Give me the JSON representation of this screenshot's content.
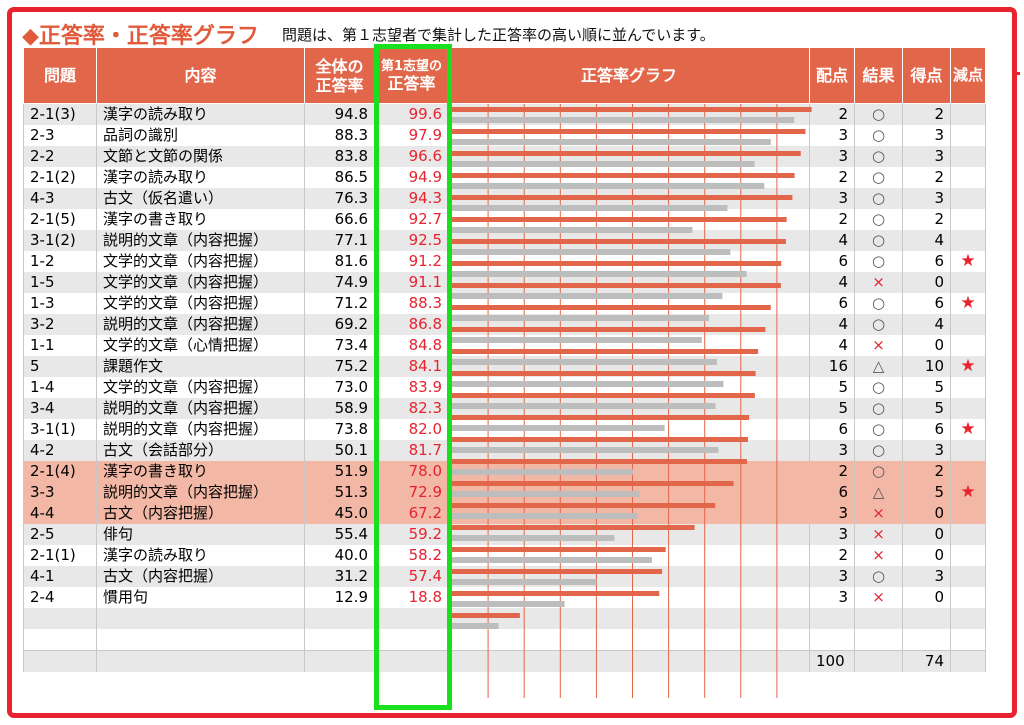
{
  "header": {
    "title": "◆正答率・正答率グラフ",
    "subtitle": "問題は、第１志望者で集計した正答率の高い順に並んでいます。"
  },
  "columns": {
    "q": "問題",
    "content": "内容",
    "all": [
      "全体の",
      "正答率"
    ],
    "first": [
      "第1志望の",
      "正答率"
    ],
    "graph": "正答率グラフ",
    "points": "配点",
    "result": "結果",
    "score": "得点",
    "deduct": "減点"
  },
  "chart_data": {
    "type": "bar",
    "title": "正答率グラフ",
    "categories": [
      "2-1(3)",
      "2-3",
      "2-2",
      "2-1(2)",
      "4-3",
      "2-1(5)",
      "3-1(2)",
      "1-2",
      "1-5",
      "1-3",
      "3-2",
      "1-1",
      "5",
      "1-4",
      "3-4",
      "3-1(1)",
      "4-2",
      "2-1(4)",
      "3-3",
      "4-4",
      "2-5",
      "2-1(1)",
      "4-1",
      "2-4"
    ],
    "series": [
      {
        "name": "第1志望の正答率",
        "color": "#e2664a",
        "values": [
          99.6,
          97.9,
          96.6,
          94.9,
          94.3,
          92.7,
          92.5,
          91.2,
          91.1,
          88.3,
          86.8,
          84.8,
          84.1,
          83.9,
          82.3,
          82.0,
          81.7,
          78.0,
          72.9,
          67.2,
          59.2,
          58.2,
          57.4,
          18.8
        ]
      },
      {
        "name": "全体の正答率",
        "color": "#bdbdbd",
        "values": [
          94.8,
          88.3,
          83.8,
          86.5,
          76.3,
          66.6,
          77.1,
          81.6,
          74.9,
          71.2,
          69.2,
          73.4,
          75.2,
          73.0,
          58.9,
          73.8,
          50.1,
          51.9,
          51.3,
          45.0,
          55.4,
          40.0,
          31.2,
          12.9
        ]
      }
    ],
    "xlim": [
      0,
      100
    ],
    "grid": true
  },
  "rows": [
    {
      "code": "2-1(3)",
      "content": "漢字の読み取り",
      "all": "94.8",
      "first": "99.6",
      "points": "2",
      "result": "○",
      "score": "2",
      "deduct": ""
    },
    {
      "code": "2-3",
      "content": "品詞の識別",
      "all": "88.3",
      "first": "97.9",
      "points": "3",
      "result": "○",
      "score": "3",
      "deduct": ""
    },
    {
      "code": "2-2",
      "content": "文節と文節の関係",
      "all": "83.8",
      "first": "96.6",
      "points": "3",
      "result": "○",
      "score": "3",
      "deduct": ""
    },
    {
      "code": "2-1(2)",
      "content": "漢字の読み取り",
      "all": "86.5",
      "first": "94.9",
      "points": "2",
      "result": "○",
      "score": "2",
      "deduct": ""
    },
    {
      "code": "4-3",
      "content": "古文（仮名遣い）",
      "all": "76.3",
      "first": "94.3",
      "points": "3",
      "result": "○",
      "score": "3",
      "deduct": ""
    },
    {
      "code": "2-1(5)",
      "content": "漢字の書き取り",
      "all": "66.6",
      "first": "92.7",
      "points": "2",
      "result": "○",
      "score": "2",
      "deduct": ""
    },
    {
      "code": "3-1(2)",
      "content": "説明的文章（内容把握）",
      "all": "77.1",
      "first": "92.5",
      "points": "4",
      "result": "○",
      "score": "4",
      "deduct": ""
    },
    {
      "code": "1-2",
      "content": "文学的文章（内容把握）",
      "all": "81.6",
      "first": "91.2",
      "points": "6",
      "result": "○",
      "score": "6",
      "deduct": "★"
    },
    {
      "code": "1-5",
      "content": "文学的文章（内容把握）",
      "all": "74.9",
      "first": "91.1",
      "points": "4",
      "result": "×",
      "score": "0",
      "deduct": ""
    },
    {
      "code": "1-3",
      "content": "文学的文章（内容把握）",
      "all": "71.2",
      "first": "88.3",
      "points": "6",
      "result": "○",
      "score": "6",
      "deduct": "★"
    },
    {
      "code": "3-2",
      "content": "説明的文章（内容把握）",
      "all": "69.2",
      "first": "86.8",
      "points": "4",
      "result": "○",
      "score": "4",
      "deduct": ""
    },
    {
      "code": "1-1",
      "content": "文学的文章（心情把握）",
      "all": "73.4",
      "first": "84.8",
      "points": "4",
      "result": "×",
      "score": "0",
      "deduct": ""
    },
    {
      "code": "5",
      "content": "課題作文",
      "all": "75.2",
      "first": "84.1",
      "points": "16",
      "result": "△",
      "score": "10",
      "deduct": "★"
    },
    {
      "code": "1-4",
      "content": "文学的文章（内容把握）",
      "all": "73.0",
      "first": "83.9",
      "points": "5",
      "result": "○",
      "score": "5",
      "deduct": ""
    },
    {
      "code": "3-4",
      "content": "説明的文章（内容把握）",
      "all": "58.9",
      "first": "82.3",
      "points": "5",
      "result": "○",
      "score": "5",
      "deduct": ""
    },
    {
      "code": "3-1(1)",
      "content": "説明的文章（内容把握）",
      "all": "73.8",
      "first": "82.0",
      "points": "6",
      "result": "○",
      "score": "6",
      "deduct": "★"
    },
    {
      "code": "4-2",
      "content": "古文（会話部分）",
      "all": "50.1",
      "first": "81.7",
      "points": "3",
      "result": "○",
      "score": "3",
      "deduct": ""
    },
    {
      "code": "2-1(4)",
      "content": "漢字の書き取り",
      "all": "51.9",
      "first": "78.0",
      "points": "2",
      "result": "○",
      "score": "2",
      "deduct": ""
    },
    {
      "code": "3-3",
      "content": "説明的文章（内容把握）",
      "all": "51.3",
      "first": "72.9",
      "points": "6",
      "result": "△",
      "score": "5",
      "deduct": "★"
    },
    {
      "code": "4-4",
      "content": "古文（内容把握）",
      "all": "45.0",
      "first": "67.2",
      "points": "3",
      "result": "×",
      "score": "0",
      "deduct": ""
    },
    {
      "code": "2-5",
      "content": "俳句",
      "all": "55.4",
      "first": "59.2",
      "points": "3",
      "result": "×",
      "score": "0",
      "deduct": ""
    },
    {
      "code": "2-1(1)",
      "content": "漢字の読み取り",
      "all": "40.0",
      "first": "58.2",
      "points": "2",
      "result": "×",
      "score": "0",
      "deduct": ""
    },
    {
      "code": "4-1",
      "content": "古文（内容把握）",
      "all": "31.2",
      "first": "57.4",
      "points": "3",
      "result": "○",
      "score": "3",
      "deduct": ""
    },
    {
      "code": "2-4",
      "content": "慣用句",
      "all": "12.9",
      "first": "18.8",
      "points": "3",
      "result": "×",
      "score": "0",
      "deduct": ""
    }
  ],
  "highlight_rows": [
    17,
    18,
    19
  ],
  "totals": {
    "points": "100",
    "score": "74"
  }
}
